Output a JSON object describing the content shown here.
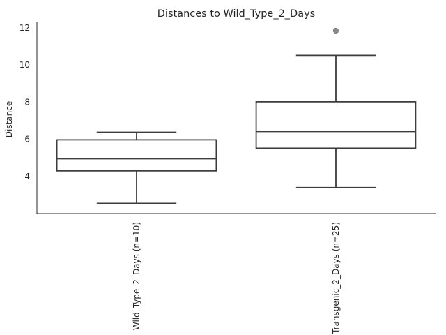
{
  "chart_data": {
    "type": "box",
    "title": "Distances to Wild_Type_2_Days",
    "xlabel": "",
    "ylabel": "Distance",
    "ylim": [
      2.0,
      12.3
    ],
    "yticks": [
      4,
      6,
      8,
      10,
      12
    ],
    "categories": [
      "Wild_Type_2_Days (n=10)",
      "Transgenic_2_Days (n=25)"
    ],
    "boxes": [
      {
        "category": "Wild_Type_2_Days (n=10)",
        "whisker_low": 2.55,
        "q1": 4.3,
        "median": 4.95,
        "q3": 5.97,
        "whisker_high": 6.38,
        "outliers": []
      },
      {
        "category": "Transgenic_2_Days (n=25)",
        "whisker_low": 3.4,
        "q1": 5.52,
        "median": 6.42,
        "q3": 8.02,
        "whisker_high": 10.52,
        "outliers": [
          11.85
        ]
      }
    ],
    "colors": {
      "box_fill": "#ffffff",
      "box_edge": "#3d3d3d",
      "flier": "#8c8c8c"
    },
    "grid": false
  }
}
